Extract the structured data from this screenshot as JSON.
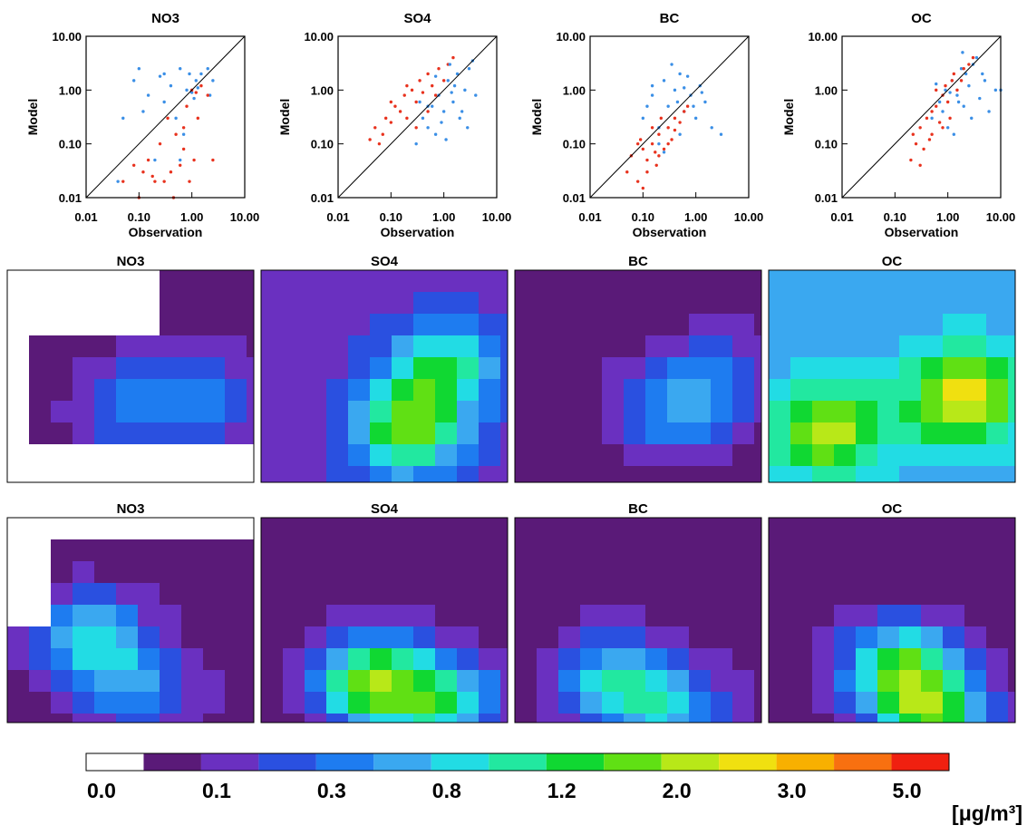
{
  "chart_data": [
    {
      "type": "scatter",
      "title": "NO3",
      "x_label": "Observation",
      "y_label": "Model",
      "log_x": true,
      "log_y": true,
      "xlim": [
        0.01,
        10
      ],
      "ylim": [
        0.01,
        10
      ],
      "xticks": [
        0.01,
        {
          "value": 0.1,
          "label": "0.10"
        },
        {
          "value": 1,
          "label": "1.00"
        },
        {
          "value": 10,
          "label": "10.00"
        }
      ],
      "yticks": [
        0.01,
        {
          "value": 0.1,
          "label": "0.10"
        },
        {
          "value": 1,
          "label": "1.00"
        },
        {
          "value": 10,
          "label": "10.00"
        }
      ],
      "series": [
        {
          "color": "#3b8fe6",
          "x": [
            0.05,
            0.08,
            0.1,
            0.15,
            0.2,
            0.3,
            0.4,
            0.5,
            0.6,
            0.8,
            1.0,
            1.2,
            1.5,
            2.0,
            2.5,
            0.3,
            0.7,
            1.1,
            0.9,
            0.12,
            0.04,
            0.25,
            1.3,
            0.6,
            2.2
          ],
          "values": [
            0.3,
            1.5,
            2.5,
            0.8,
            0.05,
            2.0,
            1.2,
            0.3,
            2.5,
            1.0,
            0.9,
            1.5,
            2.0,
            2.5,
            1.5,
            0.6,
            0.15,
            0.7,
            2.0,
            0.4,
            0.02,
            1.8,
            1.1,
            0.05,
            0.8
          ]
        },
        {
          "color": "#e8321e",
          "x": [
            0.05,
            0.08,
            0.1,
            0.12,
            0.15,
            0.2,
            0.25,
            0.3,
            0.4,
            0.5,
            0.6,
            0.7,
            0.8,
            1.0,
            1.2,
            1.5,
            2.0,
            0.35,
            0.9,
            1.1,
            0.45,
            0.18,
            1.3,
            0.7,
            2.5
          ],
          "values": [
            0.02,
            0.04,
            0.01,
            0.03,
            0.05,
            0.02,
            0.1,
            0.02,
            0.03,
            0.15,
            0.04,
            0.08,
            0.5,
            1.0,
            0.9,
            1.2,
            0.8,
            0.3,
            0.02,
            0.05,
            0.01,
            0.025,
            0.3,
            0.2,
            0.05
          ]
        }
      ]
    },
    {
      "type": "scatter",
      "title": "SO4",
      "x_label": "Observation",
      "y_label": "Model",
      "log_x": true,
      "log_y": true,
      "xlim": [
        0.01,
        10
      ],
      "ylim": [
        0.01,
        10
      ],
      "xticks": [
        0.01,
        {
          "value": 0.1,
          "label": "0.10"
        },
        {
          "value": 1,
          "label": "1.00"
        },
        {
          "value": 10,
          "label": "10.00"
        }
      ],
      "yticks": [
        0.01,
        {
          "value": 0.1,
          "label": "0.10"
        },
        {
          "value": 1,
          "label": "1.00"
        },
        {
          "value": 10,
          "label": "10.00"
        }
      ],
      "series": [
        {
          "color": "#e8321e",
          "x": [
            0.04,
            0.05,
            0.07,
            0.08,
            0.1,
            0.12,
            0.15,
            0.18,
            0.2,
            0.25,
            0.3,
            0.35,
            0.4,
            0.5,
            0.6,
            0.7,
            0.8,
            1.0,
            1.2,
            1.5,
            0.1,
            0.3,
            0.5,
            0.2,
            0.06
          ],
          "values": [
            0.12,
            0.2,
            0.15,
            0.3,
            0.25,
            0.5,
            0.4,
            0.8,
            0.3,
            1.0,
            0.6,
            1.5,
            0.9,
            2.0,
            1.2,
            0.8,
            2.5,
            1.5,
            3.0,
            4.0,
            0.6,
            0.2,
            0.4,
            1.2,
            0.1
          ]
        },
        {
          "color": "#3b8fe6",
          "x": [
            0.3,
            0.4,
            0.5,
            0.6,
            0.7,
            0.8,
            1.0,
            1.2,
            1.5,
            1.8,
            2.0,
            2.5,
            3.0,
            4.0,
            0.5,
            0.9,
            1.3,
            2.2,
            0.35,
            1.1,
            1.6,
            0.7,
            2.8,
            1.4,
            3.5
          ],
          "values": [
            0.1,
            0.3,
            0.2,
            0.5,
            0.15,
            0.8,
            0.4,
            1.5,
            0.6,
            2.0,
            0.3,
            1.0,
            2.5,
            0.8,
            0.5,
            0.25,
            3.0,
            0.4,
            0.6,
            0.12,
            1.2,
            1.8,
            0.2,
            0.9,
            3.5
          ]
        }
      ]
    },
    {
      "type": "scatter",
      "title": "BC",
      "x_label": "Observation",
      "y_label": "Model",
      "log_x": true,
      "log_y": true,
      "xlim": [
        0.01,
        10
      ],
      "ylim": [
        0.01,
        10
      ],
      "xticks": [
        0.01,
        {
          "value": 0.1,
          "label": "0.10"
        },
        {
          "value": 1,
          "label": "1.00"
        },
        {
          "value": 10,
          "label": "10.00"
        }
      ],
      "yticks": [
        0.01,
        {
          "value": 0.1,
          "label": "0.10"
        },
        {
          "value": 1,
          "label": "1.00"
        },
        {
          "value": 10,
          "label": "10.00"
        }
      ],
      "series": [
        {
          "color": "#3b8fe6",
          "x": [
            0.1,
            0.15,
            0.2,
            0.25,
            0.3,
            0.4,
            0.5,
            0.6,
            0.8,
            1.0,
            1.2,
            1.5,
            2.0,
            3.0,
            0.2,
            0.35,
            0.5,
            0.7,
            0.15,
            0.45,
            0.9,
            0.25,
            0.6,
            1.3,
            0.12
          ],
          "values": [
            0.3,
            0.8,
            0.2,
            1.5,
            0.5,
            1.0,
            2.0,
            0.4,
            0.8,
            0.3,
            1.2,
            0.6,
            0.2,
            0.15,
            0.1,
            3.0,
            0.15,
            1.8,
            1.2,
            0.6,
            0.5,
            0.07,
            1.1,
            0.9,
            0.5
          ]
        },
        {
          "color": "#e8321e",
          "x": [
            0.05,
            0.06,
            0.08,
            0.1,
            0.12,
            0.15,
            0.18,
            0.2,
            0.25,
            0.3,
            0.35,
            0.4,
            0.5,
            0.6,
            0.08,
            0.1,
            0.15,
            0.2,
            0.3,
            0.12,
            0.22,
            0.4,
            0.7,
            0.09,
            0.17
          ],
          "values": [
            0.03,
            0.06,
            0.02,
            0.08,
            0.05,
            0.1,
            0.04,
            0.15,
            0.08,
            0.2,
            0.12,
            0.3,
            0.25,
            0.4,
            0.1,
            0.015,
            0.2,
            0.06,
            0.1,
            0.03,
            0.3,
            0.18,
            0.5,
            0.12,
            0.07
          ]
        }
      ]
    },
    {
      "type": "scatter",
      "title": "OC",
      "x_label": "Observation",
      "y_label": "Model",
      "log_x": true,
      "log_y": true,
      "xlim": [
        0.01,
        10
      ],
      "ylim": [
        0.01,
        10
      ],
      "xticks": [
        0.01,
        {
          "value": 0.1,
          "label": "0.10"
        },
        {
          "value": 1,
          "label": "1.00"
        },
        {
          "value": 10,
          "label": "10.00"
        }
      ],
      "yticks": [
        0.01,
        {
          "value": 0.1,
          "label": "0.10"
        },
        {
          "value": 1,
          "label": "1.00"
        },
        {
          "value": 10,
          "label": "10.00"
        }
      ],
      "series": [
        {
          "color": "#3b8fe6",
          "x": [
            0.5,
            0.7,
            0.9,
            1.0,
            1.2,
            1.5,
            1.8,
            2.0,
            2.5,
            3.0,
            4.0,
            5.0,
            6.0,
            8.0,
            1.3,
            2.2,
            3.5,
            1.1,
            0.8,
            2.8,
            1.6,
            4.5,
            0.6,
            10.0,
            1.9
          ],
          "values": [
            0.3,
            0.6,
            1.0,
            0.2,
            1.5,
            0.8,
            2.5,
            0.5,
            1.2,
            3.0,
            0.7,
            1.5,
            0.4,
            1.0,
            0.15,
            2.0,
            4.0,
            0.9,
            0.4,
            0.3,
            0.6,
            2.0,
            1.3,
            1.0,
            5.0
          ]
        },
        {
          "color": "#e8321e",
          "x": [
            0.2,
            0.25,
            0.3,
            0.35,
            0.4,
            0.5,
            0.6,
            0.7,
            0.8,
            1.0,
            1.2,
            1.5,
            2.0,
            2.5,
            3.0,
            0.3,
            0.5,
            0.8,
            1.1,
            0.45,
            0.6,
            1.3,
            0.9,
            0.22,
            1.8
          ],
          "values": [
            0.05,
            0.1,
            0.2,
            0.08,
            0.3,
            0.15,
            0.5,
            0.25,
            0.8,
            0.6,
            1.5,
            1.0,
            2.5,
            3.0,
            4.0,
            0.04,
            0.4,
            0.2,
            0.3,
            0.12,
            1.0,
            2.0,
            1.2,
            0.15,
            1.5
          ]
        }
      ]
    }
  ],
  "maps": [
    [
      {
        "title": "NO3"
      },
      {
        "title": "SO4"
      },
      {
        "title": "BC"
      },
      {
        "title": "OC"
      }
    ],
    [
      {
        "title": "NO3"
      },
      {
        "title": "SO4"
      },
      {
        "title": "BC"
      },
      {
        "title": "OC"
      }
    ]
  ],
  "colorbar": {
    "colors": [
      "#ffffff",
      "#5a1a78",
      "#6a30c0",
      "#2a50e0",
      "#1e7cf0",
      "#3aa8f0",
      "#22dce4",
      "#22e8a0",
      "#10d832",
      "#60e014",
      "#b8e818",
      "#f0e010",
      "#f8b000",
      "#f87010",
      "#f02010"
    ],
    "labels": [
      "0.0",
      "0.1",
      "0.3",
      "0.8",
      "1.2",
      "2.0",
      "3.0",
      "5.0"
    ],
    "unit": "[μg/m³]"
  }
}
